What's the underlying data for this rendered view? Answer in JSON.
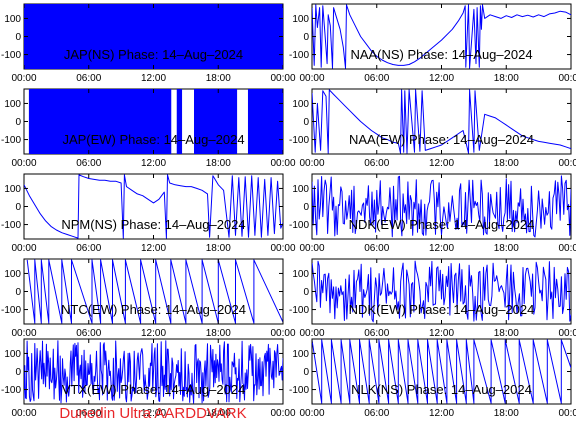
{
  "footer": {
    "text": "Dunedin Ultra AARDDVARK",
    "color": "#e8272a"
  },
  "chart_data": [
    {
      "type": "line",
      "title": "JAP(NS) Phase: 14–Aug–2024",
      "x_ticks": [
        "00:00",
        "06:00",
        "12:00",
        "18:00",
        "00:00"
      ],
      "y_ticks": [
        100,
        0,
        -100
      ],
      "xlim_hours": [
        0,
        24
      ],
      "ylim": [
        -180,
        180
      ],
      "line_color": "#0000ff",
      "pattern": "fill",
      "fill_spans": [
        [
          0,
          24
        ]
      ]
    },
    {
      "type": "line",
      "title": "NAA(NS) Phase: 14–Aug–2024",
      "x_ticks": [
        "00:00",
        "06:00",
        "12:00",
        "18:00",
        "00:00"
      ],
      "y_ticks": [
        100,
        0,
        -100
      ],
      "xlim_hours": [
        0,
        24
      ],
      "ylim": [
        -180,
        180
      ],
      "line_color": "#0000ff",
      "pattern": "points",
      "points": [
        [
          0,
          170
        ],
        [
          0.2,
          -160
        ],
        [
          0.35,
          175
        ],
        [
          0.5,
          50
        ],
        [
          0.7,
          160
        ],
        [
          0.85,
          -170
        ],
        [
          1.0,
          170
        ],
        [
          1.2,
          20
        ],
        [
          1.4,
          -150
        ],
        [
          1.5,
          120
        ],
        [
          1.7,
          60
        ],
        [
          1.9,
          -175
        ],
        [
          2.0,
          160
        ],
        [
          2.2,
          120
        ],
        [
          2.6,
          40
        ],
        [
          2.9,
          -60
        ],
        [
          3.1,
          -175
        ],
        [
          3.2,
          175
        ],
        [
          3.5,
          120
        ],
        [
          4.0,
          60
        ],
        [
          4.5,
          0
        ],
        [
          5.0,
          -40
        ],
        [
          5.5,
          -80
        ],
        [
          6.0,
          -110
        ],
        [
          6.5,
          -130
        ],
        [
          7.0,
          -145
        ],
        [
          7.5,
          -155
        ],
        [
          8.0,
          -160
        ],
        [
          8.5,
          -160
        ],
        [
          9.0,
          -155
        ],
        [
          9.5,
          -140
        ],
        [
          10.0,
          -120
        ],
        [
          11.0,
          -70
        ],
        [
          12.0,
          -20
        ],
        [
          13.0,
          40
        ],
        [
          13.6,
          90
        ],
        [
          14.0,
          130
        ],
        [
          14.2,
          170
        ],
        [
          14.25,
          -170
        ],
        [
          14.5,
          175
        ],
        [
          14.6,
          -175
        ],
        [
          15.0,
          150
        ],
        [
          15.2,
          -150
        ],
        [
          15.3,
          160
        ],
        [
          15.5,
          -170
        ],
        [
          15.6,
          170
        ],
        [
          15.7,
          40
        ],
        [
          15.8,
          175
        ],
        [
          16.0,
          100
        ],
        [
          16.5,
          120
        ],
        [
          17.0,
          110
        ],
        [
          17.5,
          100
        ],
        [
          18.0,
          115
        ],
        [
          18.5,
          105
        ],
        [
          19.0,
          120
        ],
        [
          19.5,
          110
        ],
        [
          20.0,
          118
        ],
        [
          20.5,
          108
        ],
        [
          21.0,
          120
        ],
        [
          21.5,
          110
        ],
        [
          22.0,
          125
        ],
        [
          22.5,
          130
        ],
        [
          23.0,
          140
        ],
        [
          23.5,
          135
        ],
        [
          24.0,
          120
        ]
      ]
    },
    {
      "type": "line",
      "title": "JAP(EW) Phase: 14–Aug–2024",
      "x_ticks": [
        "00:00",
        "06:00",
        "12:00",
        "18:00",
        "00:00"
      ],
      "y_ticks": [
        100,
        0,
        -100
      ],
      "xlim_hours": [
        0,
        24
      ],
      "ylim": [
        -180,
        180
      ],
      "line_color": "#0000ff",
      "pattern": "fill",
      "fill_spans": [
        [
          0.5,
          13.6
        ],
        [
          14.2,
          14.6
        ],
        [
          15.8,
          19.7
        ],
        [
          20.8,
          24
        ]
      ]
    },
    {
      "type": "line",
      "title": "NAA(EW) Phase: 14–Aug–2024",
      "x_ticks": [
        "00:00",
        "06:00",
        "12:00",
        "18:00",
        "00:00"
      ],
      "y_ticks": [
        100,
        0,
        -100
      ],
      "xlim_hours": [
        0,
        24
      ],
      "ylim": [
        -180,
        180
      ],
      "line_color": "#0000ff",
      "pattern": "points",
      "points": [
        [
          0,
          160
        ],
        [
          0.3,
          -170
        ],
        [
          0.5,
          100
        ],
        [
          0.8,
          -160
        ],
        [
          1.0,
          170
        ],
        [
          1.3,
          140
        ],
        [
          1.5,
          -175
        ],
        [
          1.6,
          175
        ],
        [
          2.0,
          150
        ],
        [
          2.5,
          120
        ],
        [
          3.0,
          90
        ],
        [
          3.5,
          60
        ],
        [
          4.0,
          30
        ],
        [
          4.5,
          0
        ],
        [
          5.0,
          -25
        ],
        [
          5.5,
          -50
        ],
        [
          6.0,
          -70
        ],
        [
          6.5,
          -90
        ],
        [
          7.0,
          -100
        ],
        [
          7.5,
          -115
        ],
        [
          8.0,
          -120
        ],
        [
          8.2,
          -175
        ],
        [
          8.3,
          175
        ],
        [
          8.5,
          -170
        ],
        [
          8.6,
          170
        ],
        [
          8.8,
          -175
        ],
        [
          9.0,
          175
        ],
        [
          9.5,
          -170
        ],
        [
          9.6,
          175
        ],
        [
          10.0,
          -165
        ],
        [
          10.2,
          170
        ],
        [
          10.5,
          -160
        ],
        [
          11.0,
          -150
        ],
        [
          11.5,
          -140
        ],
        [
          12.0,
          -130
        ],
        [
          12.5,
          -110
        ],
        [
          13.0,
          -90
        ],
        [
          13.5,
          -70
        ],
        [
          14.0,
          -50
        ],
        [
          14.5,
          -175
        ],
        [
          14.6,
          175
        ],
        [
          15.0,
          -170
        ],
        [
          15.1,
          170
        ],
        [
          15.5,
          -160
        ],
        [
          16.0,
          40
        ],
        [
          16.5,
          30
        ],
        [
          17.0,
          20
        ],
        [
          17.5,
          0
        ],
        [
          18.0,
          -20
        ],
        [
          18.5,
          -40
        ],
        [
          19.0,
          -60
        ],
        [
          19.5,
          -80
        ],
        [
          20.0,
          -90
        ],
        [
          20.5,
          -100
        ],
        [
          21.0,
          -110
        ],
        [
          21.5,
          -115
        ],
        [
          22.0,
          -120
        ],
        [
          22.5,
          -125
        ],
        [
          23.0,
          -130
        ],
        [
          23.5,
          -140
        ],
        [
          24.0,
          -150
        ]
      ]
    },
    {
      "type": "line",
      "title": "NPM(NS) Phase: 14–Aug–2024",
      "x_ticks": [
        "00:00",
        "06:00",
        "12:00",
        "18:00",
        "00:00"
      ],
      "y_ticks": [
        100,
        0,
        -100
      ],
      "xlim_hours": [
        0,
        24
      ],
      "ylim": [
        -180,
        180
      ],
      "line_color": "#0000ff",
      "pattern": "points",
      "points": [
        [
          0,
          120
        ],
        [
          0.5,
          60
        ],
        [
          1.0,
          10
        ],
        [
          1.5,
          -40
        ],
        [
          2.0,
          -80
        ],
        [
          2.5,
          -110
        ],
        [
          3.0,
          -130
        ],
        [
          3.5,
          -145
        ],
        [
          4.0,
          -155
        ],
        [
          4.5,
          -165
        ],
        [
          5.0,
          -175
        ],
        [
          5.1,
          175
        ],
        [
          5.5,
          165
        ],
        [
          6.0,
          155
        ],
        [
          6.5,
          150
        ],
        [
          7.0,
          145
        ],
        [
          7.5,
          145
        ],
        [
          8.0,
          140
        ],
        [
          8.5,
          140
        ],
        [
          9.0,
          130
        ],
        [
          9.2,
          -175
        ],
        [
          9.3,
          175
        ],
        [
          9.5,
          110
        ],
        [
          10.0,
          90
        ],
        [
          10.5,
          70
        ],
        [
          11.0,
          60
        ],
        [
          11.5,
          40
        ],
        [
          12.0,
          20
        ],
        [
          12.5,
          40
        ],
        [
          13.0,
          80
        ],
        [
          13.2,
          -175
        ],
        [
          13.3,
          175
        ],
        [
          13.5,
          130
        ],
        [
          14.0,
          120
        ],
        [
          14.5,
          115
        ],
        [
          15.0,
          110
        ],
        [
          15.5,
          110
        ],
        [
          16.0,
          100
        ],
        [
          16.5,
          90
        ],
        [
          17.0,
          70
        ],
        [
          17.2,
          -170
        ],
        [
          17.5,
          170
        ],
        [
          18.0,
          120
        ],
        [
          18.5,
          90
        ],
        [
          19.0,
          -170
        ],
        [
          19.3,
          170
        ],
        [
          19.6,
          -160
        ],
        [
          19.9,
          160
        ],
        [
          20.2,
          -165
        ],
        [
          20.5,
          165
        ],
        [
          20.8,
          -170
        ],
        [
          21.1,
          170
        ],
        [
          21.4,
          -160
        ],
        [
          21.7,
          160
        ],
        [
          22.0,
          -170
        ],
        [
          22.3,
          150
        ],
        [
          22.6,
          -160
        ],
        [
          22.9,
          160
        ],
        [
          23.2,
          -150
        ],
        [
          23.5,
          140
        ],
        [
          23.8,
          -120
        ],
        [
          24.0,
          -90
        ]
      ]
    },
    {
      "type": "line",
      "title": "NDK(EW) Phase: 14–Aug–2024",
      "x_ticks": [
        "00:00",
        "06:00",
        "12:00",
        "18:00",
        "00:00"
      ],
      "y_ticks": [
        100,
        0,
        -100
      ],
      "xlim_hours": [
        0,
        24
      ],
      "ylim": [
        -180,
        180
      ],
      "line_color": "#0000ff",
      "pattern": "noise",
      "noise_amplitude": 170,
      "noise_center": 0,
      "noise_spikes_per_hour": 9
    },
    {
      "type": "line",
      "title": "NTC(EW) Phase: 14–Aug–2024",
      "x_ticks": [
        "00:00",
        "06:00",
        "12:00",
        "18:00",
        "00:00"
      ],
      "y_ticks": [
        100,
        0,
        -100
      ],
      "xlim_hours": [
        0,
        24
      ],
      "ylim": [
        -180,
        180
      ],
      "line_color": "#0000ff",
      "pattern": "sawtooth",
      "wraps_hours": [
        0.3,
        1.0,
        1.6,
        2.3,
        3.5,
        4.4,
        6.3,
        7.1,
        8.2,
        9.4,
        10.8,
        12.2,
        13.6,
        15.0,
        16.5,
        18.0,
        19.6,
        21.3
      ],
      "ramp_direction": "down",
      "end_value": -170
    },
    {
      "type": "line",
      "title": "NDK(EW) Phase: 14–Aug–2024",
      "x_ticks": [
        "00:00",
        "06:00",
        "12:00",
        "18:00",
        "00:00"
      ],
      "y_ticks": [
        100,
        0,
        -100
      ],
      "xlim_hours": [
        0,
        24
      ],
      "ylim": [
        -180,
        180
      ],
      "line_color": "#0000ff",
      "pattern": "noise",
      "noise_amplitude": 170,
      "noise_center": 0,
      "noise_spikes_per_hour": 9
    },
    {
      "type": "line",
      "title": "VTX(EW) Phase: 14–Aug–2024",
      "x_ticks": [
        "00:00",
        "06:00",
        "12:00",
        "18:00",
        "00:00"
      ],
      "y_ticks": [
        100,
        0,
        -100
      ],
      "xlim_hours": [
        0,
        24
      ],
      "ylim": [
        -180,
        180
      ],
      "line_color": "#0000ff",
      "pattern": "noise",
      "noise_amplitude": 175,
      "noise_center": 0,
      "noise_spikes_per_hour": 14
    },
    {
      "type": "line",
      "title": "NLK(NS) Phase: 14–Aug–2024",
      "x_ticks": [
        "00:00",
        "06:00",
        "12:00",
        "18:00",
        "00:00"
      ],
      "y_ticks": [
        100,
        0,
        -100
      ],
      "xlim_hours": [
        0,
        24
      ],
      "ylim": [
        -180,
        180
      ],
      "line_color": "#0000ff",
      "pattern": "sawtooth",
      "wraps_hours": [
        0.0,
        0.9,
        1.8,
        2.7,
        3.5,
        4.4,
        5.3,
        6.2,
        7.1,
        8.0,
        8.9,
        9.8,
        10.7,
        11.6,
        12.5,
        13.4,
        14.3,
        15.0,
        16.6,
        17.9,
        19.2,
        20.5,
        21.8,
        23.1
      ],
      "ramp_direction": "down",
      "end_value": 20
    }
  ]
}
